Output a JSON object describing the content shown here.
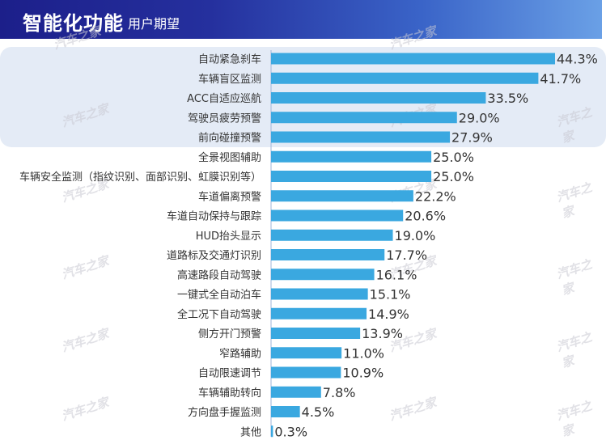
{
  "header": {
    "title": "智能化功能",
    "subtitle": "用户期望"
  },
  "watermark": "汽车之家",
  "chart_data": {
    "type": "bar",
    "orientation": "horizontal",
    "title": "",
    "xlabel": "",
    "ylabel": "",
    "xlim": [
      0,
      44.3
    ],
    "grid": false,
    "legend": "none",
    "value_format": "percent",
    "bar_color": "#3aa8e0",
    "categories": [
      "自动紧急刹车",
      "车辆盲区监测",
      "ACC自适应巡航",
      "驾驶员疲劳预警",
      "前向碰撞预警",
      "全景视图辅助",
      "车辆安全监测（指纹识别、面部识别、虹膜识别等）",
      "车道偏离预警",
      "车道自动保持与跟踪",
      "HUD抬头显示",
      "道路标及交通灯识别",
      "高速路段自动驾驶",
      "一键式全自动泊车",
      "全工况下自动驾驶",
      "侧方开门预警",
      "窄路辅助",
      "自动限速调节",
      "车辆辅助转向",
      "方向盘手握监测",
      "其他"
    ],
    "values": [
      44.3,
      41.7,
      33.5,
      29.0,
      27.9,
      25.0,
      25.0,
      22.2,
      20.6,
      19.0,
      17.7,
      16.1,
      15.1,
      14.9,
      13.9,
      11.0,
      10.9,
      7.8,
      4.5,
      0.3
    ],
    "labels": [
      "44.3%",
      "41.7%",
      "33.5%",
      "29.0%",
      "27.9%",
      "25.0%",
      "25.0%",
      "22.2%",
      "20.6%",
      "19.0%",
      "17.7%",
      "16.1%",
      "15.1%",
      "14.9%",
      "13.9%",
      "11.0%",
      "10.9%",
      "7.8%",
      "4.5%",
      "0.3%"
    ],
    "highlighted_count": 5
  }
}
